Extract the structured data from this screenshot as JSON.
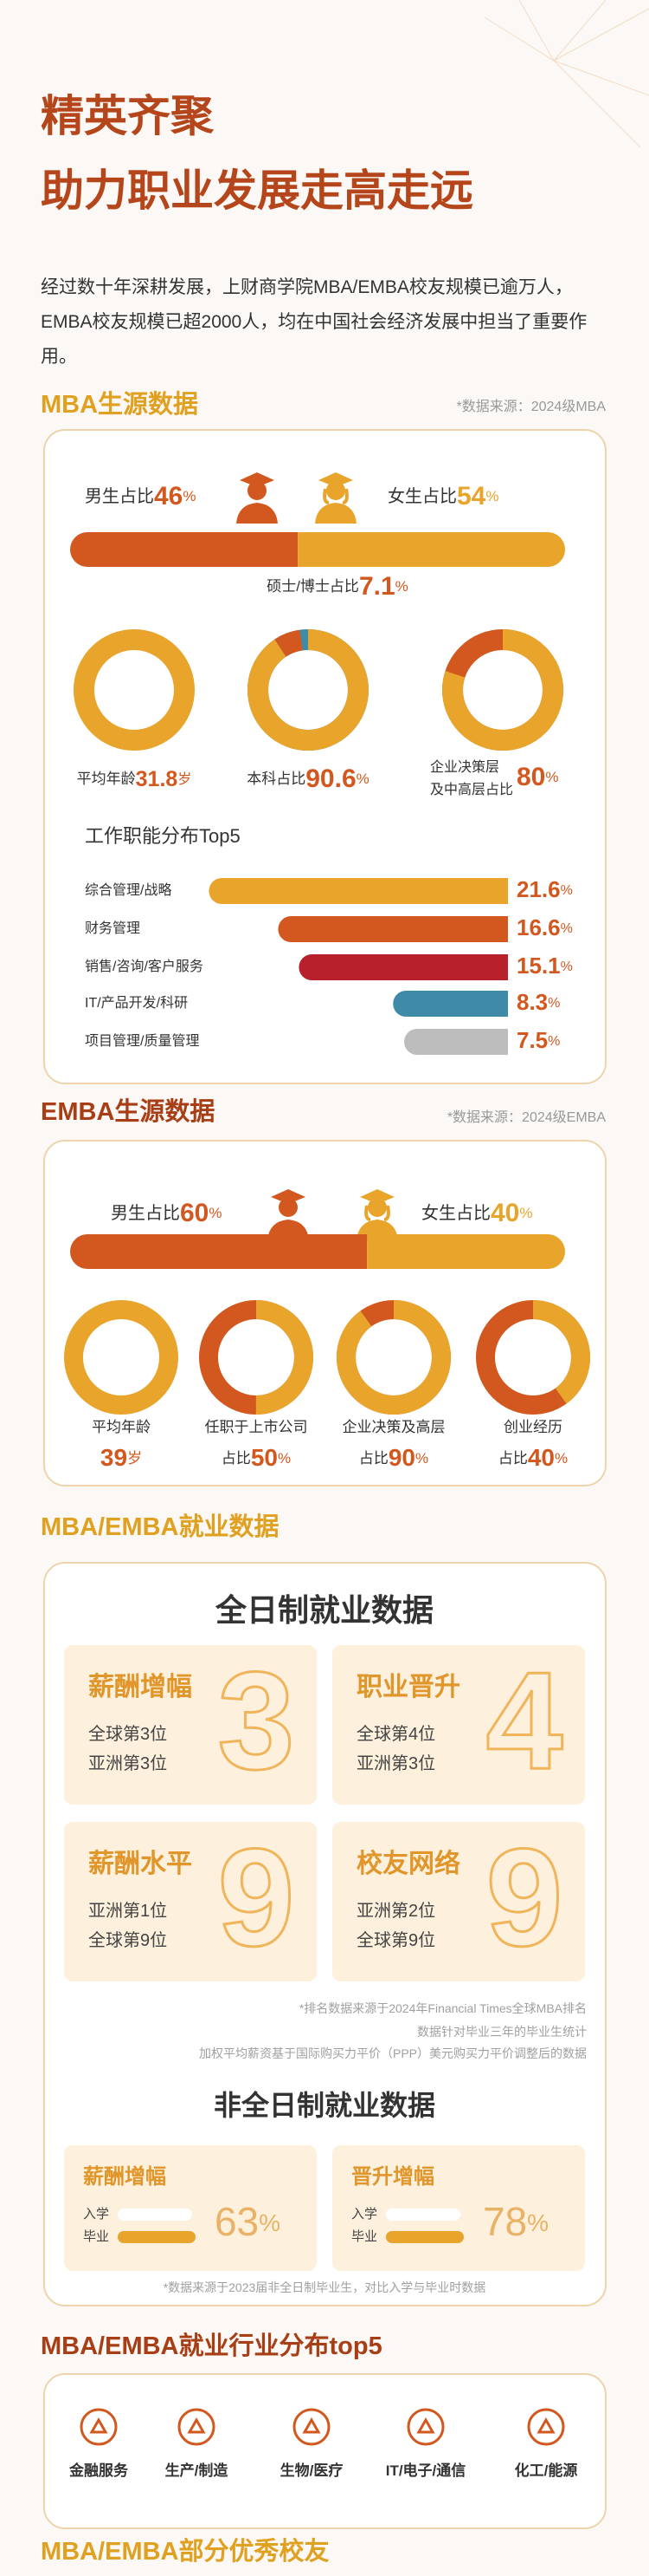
{
  "header": {
    "title": [
      "精英齐聚",
      "助力职业发展走高走远"
    ],
    "intro": "经过数十年深耕发展，上财商学院MBA/EMBA校友规模已逾万人，EMBA校友规模已超2000人，均在中国社会经济发展中担当了重要作用。"
  },
  "mba": {
    "title": "MBA生源数据",
    "source": "*数据来源：2024级MBA",
    "gender": [
      {
        "label": "男生占比",
        "value": 46,
        "unit": "%",
        "color": "#d2581f"
      },
      {
        "label": "女生占比",
        "value": 54,
        "unit": "%",
        "color": "#e8a42b"
      }
    ],
    "age": {
      "label": "平均年龄",
      "value": 31.8,
      "unit": "岁",
      "color": "#e8a42b"
    },
    "degree": {
      "rest_color": "#3f8aa6",
      "parts": [
        {
          "label": "本科占比",
          "value": 90.6,
          "unit": "%",
          "color": "#e8a42b"
        },
        {
          "label": "硕士/博士占比",
          "value": 7.1,
          "unit": "%",
          "color": "#d2581f"
        }
      ]
    },
    "management": {
      "label": [
        "企业决策层",
        "及中高层占比"
      ],
      "value": 80,
      "unit": "%",
      "color": "#e8a42b",
      "rest_color": "#d2581f"
    },
    "functions": {
      "title": "工作职能分布Top5",
      "items": [
        {
          "label": "综合管理/战略",
          "value": 21.6,
          "unit": "%",
          "color": "#e8a42b"
        },
        {
          "label": "财务管理",
          "value": 16.6,
          "unit": "%",
          "color": "#d2581f"
        },
        {
          "label": "销售/咨询/客户服务",
          "value": 15.1,
          "unit": "%",
          "color": "#b8212b"
        },
        {
          "label": "IT/产品开发/科研",
          "value": 8.3,
          "unit": "%",
          "color": "#3f8aa6"
        },
        {
          "label": "项目管理/质量管理",
          "value": 7.5,
          "unit": "%",
          "color": "#bdbdbd"
        }
      ]
    }
  },
  "emba": {
    "title": "EMBA生源数据",
    "source": "*数据来源：2024级EMBA",
    "gender": [
      {
        "label": "男生占比",
        "value": 60,
        "unit": "%",
        "color": "#d2581f"
      },
      {
        "label": "女生占比",
        "value": 40,
        "unit": "%",
        "color": "#e8a42b"
      }
    ],
    "age": {
      "label": "平均年龄",
      "value": 39,
      "unit": "岁",
      "color": "#e8a42b"
    },
    "rings": [
      {
        "label": "任职于上市公司",
        "prefix": "占比",
        "value": 50,
        "unit": "%",
        "color": "#e8a42b",
        "rest_color": "#d2581f"
      },
      {
        "label": "企业决策及高层",
        "prefix": "占比",
        "value": 90,
        "unit": "%",
        "color": "#e8a42b",
        "rest_color": "#d2581f"
      },
      {
        "label": "创业经历",
        "prefix": "占比",
        "value": 40,
        "unit": "%",
        "color": "#e8a42b",
        "rest_color": "#d2581f"
      }
    ]
  },
  "employment": {
    "title": "MBA/EMBA就业数据",
    "fulltime": {
      "title": "全日制就业数据",
      "cards": [
        {
          "title": "薪酬增幅",
          "lines": [
            "全球第3位",
            "亚洲第3位"
          ],
          "rank": 3
        },
        {
          "title": "职业晋升",
          "lines": [
            "全球第4位",
            "亚洲第3位"
          ],
          "rank": 4
        },
        {
          "title": "薪酬水平",
          "lines": [
            "亚洲第1位",
            "全球第9位"
          ],
          "rank": 9
        },
        {
          "title": "校友网络",
          "lines": [
            "亚洲第2位",
            "全球第9位"
          ],
          "rank": 9
        }
      ],
      "notes": [
        "*排名数据来源于2024年Financial Times全球MBA排名",
        "数据针对毕业三年的毕业生统计",
        "加权平均薪资基于国际购买力平价（PPP）美元购买力平价调整后的数据"
      ]
    },
    "parttime": {
      "title": "非全日制就业数据",
      "cards": [
        {
          "title": "薪酬增幅",
          "rows": [
            "入学",
            "毕业"
          ],
          "value": 63,
          "unit": "%"
        },
        {
          "title": "晋升增幅",
          "rows": [
            "入学",
            "毕业"
          ],
          "value": 78,
          "unit": "%"
        }
      ],
      "note": "*数据来源于2023届非全日制毕业生，对比入学与毕业时数据"
    }
  },
  "industry": {
    "title": "MBA/EMBA就业行业分布top5",
    "items": [
      "金融服务",
      "生产/制造",
      "生物/医疗",
      "IT/电子/通信",
      "化工/能源"
    ]
  },
  "footer": {
    "title": "MBA/EMBA部分优秀校友"
  }
}
